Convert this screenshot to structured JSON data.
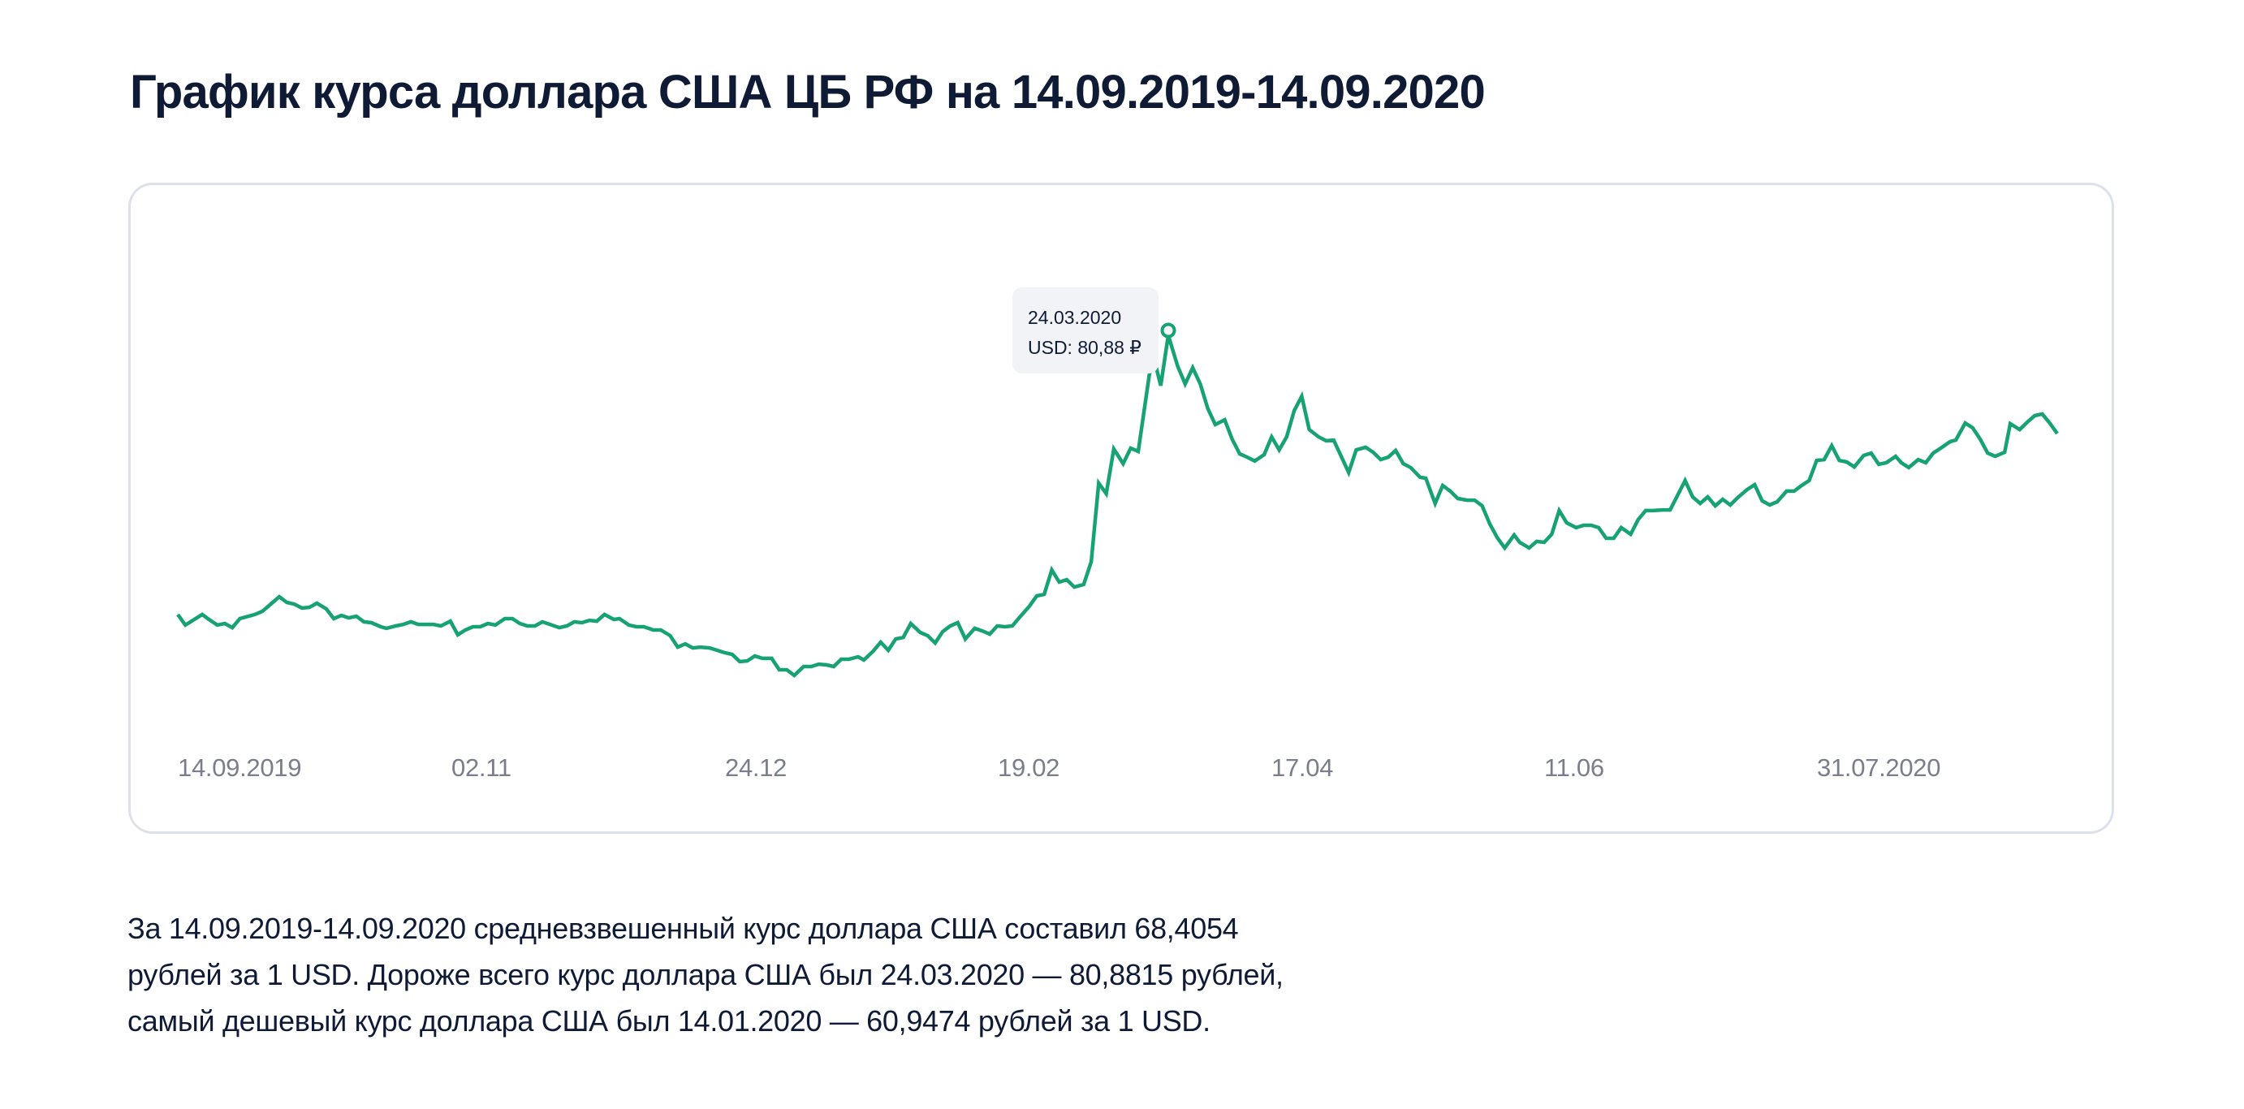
{
  "page": {
    "title": "График курса доллара США ЦБ РФ на 14.09.2019-14.09.2020"
  },
  "tooltip": {
    "date": "24.03.2020",
    "value_label": "USD: 80,88 ₽"
  },
  "summary": {
    "lines": [
      "За 14.09.2019-14.09.2020 средневзвешенный курс доллара США составил 68,4054",
      "рублей за 1 USD. Дороже всего курс доллара США был 24.03.2020 — 80,8815 рублей,",
      "самый дешевый курс доллара США был 14.01.2020 — 60,9474 рублей за 1 USD."
    ]
  },
  "colors": {
    "line": "#17A274",
    "card_border": "#DDE1EA",
    "tooltip_bg": "#F2F3F7",
    "tick_text": "#7A7D8C",
    "text": "#0F1B36"
  },
  "chart_data": {
    "type": "line",
    "title": "График курса доллара США ЦБ РФ на 14.09.2019-14.09.2020",
    "xlabel": "",
    "ylabel": "",
    "grid": false,
    "legend": "none",
    "x_tick_labels": [
      "14.09.2019",
      "02.11",
      "24.12",
      "19.02",
      "17.04",
      "11.06",
      "31.07.2020"
    ],
    "x_range": [
      "14.09.2019",
      "14.09.2020"
    ],
    "ylim": [
      60.9474,
      80.8815
    ],
    "series": [
      {
        "name": "USD",
        "unit": "₽",
        "x_norm": [
          0.0,
          0.004,
          0.013,
          0.016,
          0.021,
          0.025,
          0.029,
          0.033,
          0.041,
          0.045,
          0.05,
          0.054,
          0.058,
          0.062,
          0.066,
          0.07,
          0.074,
          0.079,
          0.083,
          0.087,
          0.091,
          0.095,
          0.099,
          0.103,
          0.108,
          0.111,
          0.116,
          0.12,
          0.124,
          0.128,
          0.132,
          0.136,
          0.14,
          0.145,
          0.149,
          0.153,
          0.157,
          0.161,
          0.165,
          0.169,
          0.174,
          0.178,
          0.182,
          0.186,
          0.19,
          0.194,
          0.198,
          0.203,
          0.207,
          0.211,
          0.215,
          0.219,
          0.223,
          0.227,
          0.232,
          0.235,
          0.24,
          0.244,
          0.248,
          0.253,
          0.257,
          0.262,
          0.266,
          0.27,
          0.274,
          0.278,
          0.283,
          0.287,
          0.291,
          0.295,
          0.299,
          0.303,
          0.307,
          0.311,
          0.316,
          0.32,
          0.324,
          0.328,
          0.333,
          0.337,
          0.341,
          0.345,
          0.349,
          0.353,
          0.357,
          0.362,
          0.365,
          0.37,
          0.374,
          0.378,
          0.382,
          0.386,
          0.39,
          0.395,
          0.399,
          0.403,
          0.407,
          0.411,
          0.415,
          0.419,
          0.424,
          0.428,
          0.432,
          0.436,
          0.44,
          0.444,
          0.448,
          0.453,
          0.457,
          0.461,
          0.465,
          0.469,
          0.473,
          0.477,
          0.482,
          0.486,
          0.49,
          0.494,
          0.498,
          0.503,
          0.507,
          0.511,
          0.517,
          0.52,
          0.523,
          0.527,
          0.532,
          0.536,
          0.54,
          0.544,
          0.548,
          0.552,
          0.557,
          0.561,
          0.565,
          0.569,
          0.573,
          0.578,
          0.582,
          0.586,
          0.59,
          0.594,
          0.598,
          0.602,
          0.607,
          0.611,
          0.615,
          0.619,
          0.623,
          0.627,
          0.632,
          0.636,
          0.64,
          0.644,
          0.648,
          0.652,
          0.656,
          0.661,
          0.664,
          0.669,
          0.673,
          0.677,
          0.681,
          0.686,
          0.69,
          0.694,
          0.698,
          0.702,
          0.706,
          0.711,
          0.714,
          0.719,
          0.723,
          0.727,
          0.731,
          0.735,
          0.739,
          0.744,
          0.748,
          0.752,
          0.756,
          0.76,
          0.764,
          0.768,
          0.773,
          0.777,
          0.781,
          0.785,
          0.79,
          0.794,
          0.798,
          0.802,
          0.806,
          0.81,
          0.814,
          0.818,
          0.822,
          0.826,
          0.83,
          0.835,
          0.839,
          0.843,
          0.847,
          0.851,
          0.856,
          0.86,
          0.864,
          0.868,
          0.872,
          0.876,
          0.88,
          0.884,
          0.888,
          0.892,
          0.897,
          0.901,
          0.905,
          0.909,
          0.914,
          0.917,
          0.921,
          0.926,
          0.93,
          0.934,
          0.938,
          0.943,
          0.946,
          0.951,
          0.955,
          0.959,
          0.963,
          0.967,
          0.972,
          0.975,
          0.98,
          0.984,
          0.988,
          0.992,
          0.996,
          1.0
        ],
        "values": [
          64.52,
          63.9,
          64.52,
          64.28,
          63.9,
          63.99,
          63.75,
          64.28,
          64.52,
          64.71,
          65.18,
          65.56,
          65.23,
          65.13,
          64.9,
          64.94,
          65.18,
          64.85,
          64.28,
          64.47,
          64.32,
          64.42,
          64.09,
          64.04,
          63.8,
          63.71,
          63.85,
          63.94,
          64.09,
          63.94,
          63.94,
          63.94,
          63.85,
          64.13,
          63.33,
          63.61,
          63.8,
          63.8,
          63.99,
          63.9,
          64.28,
          64.28,
          63.99,
          63.85,
          63.85,
          64.09,
          63.94,
          63.75,
          63.85,
          64.09,
          64.04,
          64.18,
          64.13,
          64.52,
          64.23,
          64.28,
          63.9,
          63.8,
          63.8,
          63.61,
          63.61,
          63.28,
          62.61,
          62.8,
          62.56,
          62.61,
          62.56,
          62.42,
          62.28,
          62.18,
          61.76,
          61.8,
          62.09,
          61.95,
          61.95,
          61.28,
          61.28,
          60.95,
          61.47,
          61.47,
          61.61,
          61.57,
          61.47,
          61.9,
          61.9,
          62.04,
          61.85,
          62.37,
          62.9,
          62.42,
          63.09,
          63.18,
          63.99,
          63.47,
          63.28,
          62.85,
          63.52,
          63.85,
          64.04,
          63.09,
          63.71,
          63.56,
          63.37,
          63.85,
          63.8,
          63.85,
          64.37,
          64.99,
          65.61,
          65.7,
          67.13,
          66.42,
          66.56,
          66.13,
          66.28,
          67.61,
          72.22,
          71.6,
          74.22,
          73.36,
          74.27,
          74.08,
          78.65,
          79.26,
          77.93,
          80.88,
          79.07,
          78.03,
          78.98,
          78.03,
          76.6,
          75.65,
          75.93,
          74.79,
          73.93,
          73.74,
          73.51,
          73.89,
          74.93,
          74.17,
          74.93,
          76.46,
          77.31,
          75.36,
          74.93,
          74.7,
          74.74,
          73.79,
          72.84,
          74.17,
          74.32,
          74.03,
          73.6,
          73.74,
          74.13,
          73.36,
          73.13,
          72.56,
          72.51,
          71.03,
          72.08,
          71.75,
          71.32,
          71.22,
          71.22,
          70.89,
          69.84,
          69.03,
          68.42,
          69.18,
          68.75,
          68.42,
          68.8,
          68.75,
          69.22,
          70.61,
          69.89,
          69.61,
          69.75,
          69.75,
          69.61,
          68.99,
          68.99,
          69.61,
          69.22,
          70.08,
          70.61,
          70.61,
          70.65,
          70.65,
          71.51,
          72.37,
          71.41,
          71.03,
          71.41,
          70.89,
          71.27,
          70.94,
          71.37,
          71.84,
          72.13,
          71.18,
          70.94,
          71.13,
          71.75,
          71.75,
          72.08,
          72.37,
          73.55,
          73.6,
          74.41,
          73.55,
          73.46,
          73.17,
          73.84,
          73.98,
          73.32,
          73.41,
          73.79,
          73.41,
          73.13,
          73.6,
          73.41,
          73.98,
          74.27,
          74.65,
          74.74,
          75.74,
          75.46,
          74.79,
          73.98,
          73.79,
          74.03,
          75.7,
          75.36,
          75.79,
          76.17,
          76.27,
          75.74,
          75.12
        ]
      }
    ],
    "annotations": [
      {
        "type": "tooltip",
        "date": "24.03.2020",
        "label": "USD: 80,88 ₽",
        "value": 80.88,
        "x_norm": 0.527,
        "marker": "circle"
      }
    ],
    "stats": {
      "average": 68.4054,
      "max": {
        "date": "24.03.2020",
        "value": 80.8815
      },
      "min": {
        "date": "14.01.2020",
        "value": 60.9474
      }
    }
  }
}
